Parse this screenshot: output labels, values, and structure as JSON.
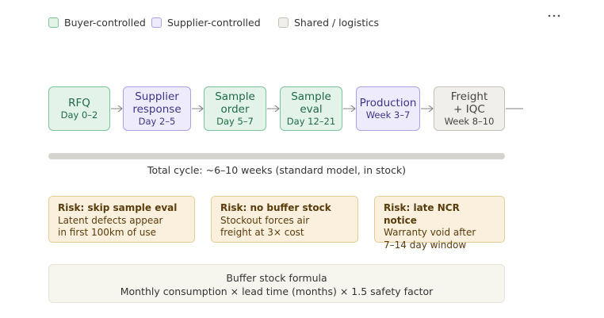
{
  "legend": [
    {
      "label": "Buyer-controlled",
      "color": "#e4f3ea",
      "border": "#7cc49a",
      "text": "#1e6b45"
    },
    {
      "label": "Supplier-controlled",
      "color": "#eeecfc",
      "border": "#a9a1ea",
      "text": "#3c3489"
    },
    {
      "label": "Shared / logistics",
      "color": "#f1efeb",
      "border": "#c4c0b8",
      "text": "#444441"
    }
  ],
  "steps": [
    {
      "title": [
        "RFQ"
      ],
      "subtitle": "Day 0–2",
      "group": 0
    },
    {
      "title": [
        "Supplier",
        "response"
      ],
      "subtitle": "Day 2–5",
      "group": 1
    },
    {
      "title": [
        "Sample",
        "order"
      ],
      "subtitle": "Day 5–7",
      "group": 0
    },
    {
      "title": [
        "Sample",
        "eval"
      ],
      "subtitle": "Day 12–21",
      "group": 0
    },
    {
      "title": [
        "Production"
      ],
      "subtitle": "Week 3–7",
      "group": 1
    },
    {
      "title": [
        "Freight",
        "+ IQC"
      ],
      "subtitle": "Week 8–10",
      "group": 2
    }
  ],
  "timeline": {
    "label": "Total cycle: ~6–10 weeks (standard model, in stock)"
  },
  "risks": [
    {
      "title": "Risk: skip sample eval",
      "lines": [
        "Latent defects appear",
        "in first 100km of use"
      ]
    },
    {
      "title": "Risk: no buffer stock",
      "lines": [
        "Stockout forces air",
        "freight at 3× cost"
      ]
    },
    {
      "title": "Risk: late NCR notice",
      "lines": [
        "Warranty void after",
        "7–14 day window"
      ]
    }
  ],
  "formula": {
    "title": "Buffer stock formula",
    "text": "Monthly consumption × lead time (months) × 1.5 safety factor"
  }
}
